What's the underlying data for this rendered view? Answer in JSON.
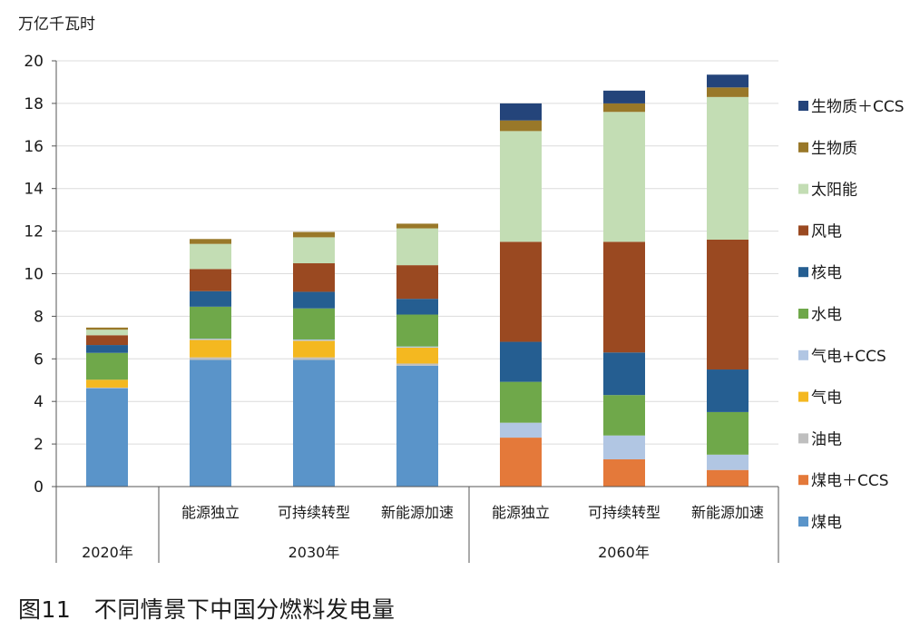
{
  "figure": {
    "unit_label": "万亿千瓦时",
    "caption": "图11　不同情景下中国分燃料发电量"
  },
  "chart_data": {
    "type": "bar",
    "stacked": true,
    "title": "",
    "ylabel": "万亿千瓦时",
    "ylim": [
      0,
      20
    ],
    "yticks": [
      0,
      2,
      4,
      6,
      8,
      10,
      12,
      14,
      16,
      18,
      20
    ],
    "grid": true,
    "legend_position": "right",
    "categories": [
      "2020年",
      "能源独立",
      "可持续转型",
      "新能源加速",
      "能源独立",
      "可持续转型",
      "新能源加速"
    ],
    "groups": [
      {
        "label": "2020年",
        "indices": [
          0
        ]
      },
      {
        "label": "2030年",
        "indices": [
          1,
          2,
          3
        ]
      },
      {
        "label": "2060年",
        "indices": [
          4,
          5,
          6
        ]
      }
    ],
    "series": [
      {
        "name": "煤电",
        "color": "#5a94c9",
        "values": [
          4.62,
          5.95,
          5.95,
          5.68,
          0,
          0,
          0
        ]
      },
      {
        "name": "煤电＋CCS",
        "color": "#e4793a",
        "values": [
          0,
          0,
          0,
          0,
          2.3,
          1.28,
          0.78
        ]
      },
      {
        "name": "油电",
        "color": "#bfbfbf",
        "values": [
          0.03,
          0.12,
          0.12,
          0.1,
          0,
          0,
          0
        ]
      },
      {
        "name": "气电",
        "color": "#f4b820",
        "values": [
          0.37,
          0.82,
          0.78,
          0.75,
          0,
          0,
          0
        ]
      },
      {
        "name": "气电+CCS",
        "color": "#b1c6e3",
        "values": [
          0,
          0.06,
          0.06,
          0.05,
          0.7,
          1.12,
          0.72
        ]
      },
      {
        "name": "水电",
        "color": "#6fa84a",
        "values": [
          1.26,
          1.5,
          1.46,
          1.5,
          1.92,
          1.9,
          2.0
        ]
      },
      {
        "name": "核电",
        "color": "#255e91",
        "values": [
          0.37,
          0.73,
          0.78,
          0.74,
          1.88,
          2.0,
          2.0
        ]
      },
      {
        "name": "风电",
        "color": "#9a4921",
        "values": [
          0.46,
          1.04,
          1.34,
          1.58,
          4.7,
          5.2,
          6.1
        ]
      },
      {
        "name": "太阳能",
        "color": "#c3ddb4",
        "values": [
          0.26,
          1.18,
          1.22,
          1.73,
          5.2,
          6.1,
          6.7
        ]
      },
      {
        "name": "生物质",
        "color": "#997829",
        "values": [
          0.1,
          0.23,
          0.25,
          0.22,
          0.5,
          0.4,
          0.45
        ]
      },
      {
        "name": "生物质＋CCS",
        "color": "#24447a",
        "values": [
          0,
          0,
          0,
          0,
          0.8,
          0.6,
          0.6
        ]
      }
    ]
  }
}
